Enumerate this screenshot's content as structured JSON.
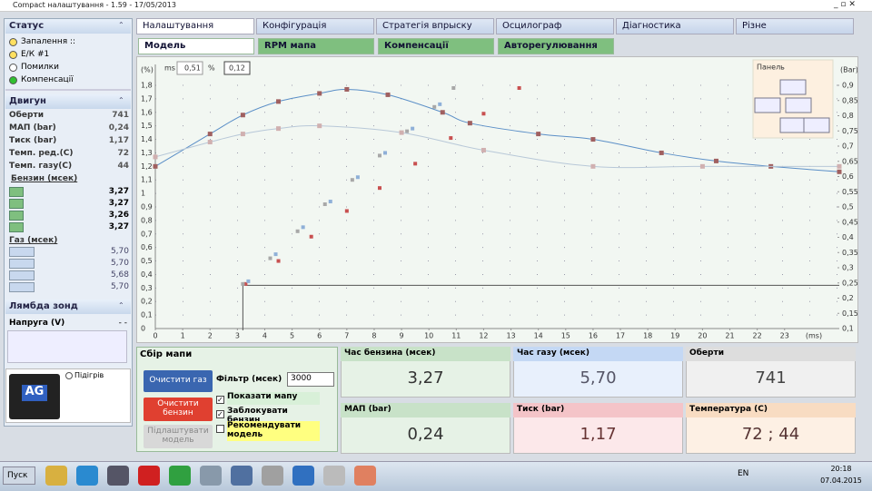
{
  "window": {
    "title": "Compact налаштування - 1.59 - 17/05/2013"
  },
  "tabs": [
    "Налаштування",
    "Конфігурація",
    "Стратегія впрыску",
    "Осцилограф",
    "Діагностика",
    "Різне"
  ],
  "subtabs": [
    "Модель",
    "RPM мапа",
    "Компенсації",
    "Авторегулювання"
  ],
  "status": {
    "title": "Статус",
    "items": [
      "Запалення ::",
      "Е/К #1",
      "Помилки",
      "Компенсації"
    ]
  },
  "engine": {
    "title": "Двигун",
    "rows": [
      [
        "Оберти",
        "741"
      ],
      [
        "МАП (bar)",
        "0,24"
      ],
      [
        "Тиск (bar)",
        "1,17"
      ],
      [
        "Темп. ред.(С)",
        "72"
      ],
      [
        "Темп. газу(С)",
        "44"
      ]
    ],
    "benzin_title": "Бензин (мсек)",
    "benzin": [
      "3,27",
      "3,27",
      "3,26",
      "3,27"
    ],
    "gas_title": "Газ (мсек)",
    "gas": [
      "5,70",
      "5,70",
      "5,68",
      "5,70"
    ]
  },
  "lambda": {
    "title": "Лямбда зонд",
    "label": "Напруга (V)",
    "value": "- -"
  },
  "logo": {
    "text": "AG",
    "checkbox": "Підігрів"
  },
  "chart": {
    "y_unit": "(%)",
    "y2_unit": "(Bar)",
    "x_unit": "(ms)",
    "ms_label": "ms",
    "ms_value": "0,51",
    "pct_label": "%",
    "pct_value": "0,12",
    "panel_title": "Панель",
    "xlim": [
      0,
      25
    ],
    "ylim": [
      0,
      1.8
    ],
    "y2lim": [
      0.1,
      0.9
    ],
    "xticks": [
      0,
      1,
      2,
      3,
      4,
      5,
      6,
      7,
      8,
      9,
      10,
      11,
      12,
      13,
      14,
      15,
      16,
      17,
      18,
      19,
      20,
      21,
      22,
      23
    ],
    "yticks": [
      0,
      {
        "value": 0.1,
        "label": "0,1"
      },
      {
        "value": 0.2,
        "label": "0,2"
      },
      {
        "value": 0.3,
        "label": "0,3"
      },
      {
        "value": 0.4,
        "label": "0,4"
      },
      {
        "value": 0.5,
        "label": "0,5"
      },
      {
        "value": 0.6,
        "label": "0,6"
      },
      {
        "value": 0.7,
        "label": "0,7"
      },
      {
        "value": 0.8,
        "label": "0,8"
      },
      {
        "value": 0.9,
        "label": "0,9"
      },
      1,
      {
        "value": 1.1,
        "label": "1,1"
      },
      {
        "value": 1.2,
        "label": "1,2"
      },
      {
        "value": 1.3,
        "label": "1,3"
      },
      {
        "value": 1.4,
        "label": "1,4"
      },
      {
        "value": 1.5,
        "label": "1,5"
      },
      {
        "value": 1.6,
        "label": "1,6"
      },
      {
        "value": 1.7,
        "label": "1,7"
      },
      {
        "value": 1.8,
        "label": "1,8"
      }
    ],
    "y2ticks": [
      {
        "value": 0.1,
        "label": "0,1"
      },
      {
        "value": 0.15,
        "label": "0,15"
      },
      {
        "value": 0.2,
        "label": "0,2"
      },
      {
        "value": 0.25,
        "label": "0,25"
      },
      {
        "value": 0.3,
        "label": "0,3"
      },
      {
        "value": 0.35,
        "label": "0,35"
      },
      {
        "value": 0.4,
        "label": "0,4"
      },
      {
        "value": 0.45,
        "label": "0,45"
      },
      {
        "value": 0.5,
        "label": "0,5"
      },
      {
        "value": 0.55,
        "label": "0,55"
      },
      {
        "value": 0.6,
        "label": "0,6"
      },
      {
        "value": 0.65,
        "label": "0,65"
      },
      {
        "value": 0.7,
        "label": "0,7"
      },
      {
        "value": 0.75,
        "label": "0,75"
      },
      {
        "value": 0.8,
        "label": "0,8"
      },
      {
        "value": 0.85,
        "label": "0,85"
      },
      {
        "value": 0.9,
        "label": "0,9"
      }
    ],
    "cursor": {
      "x": 3.2,
      "y": 0.32
    },
    "curves": [
      {
        "color": "#5b8fc7",
        "marker": "#a06060",
        "x": [
          0,
          2,
          3.2,
          4.5,
          6,
          7,
          8.5,
          10.5,
          11.5,
          14,
          16,
          18.5,
          20.5,
          22.5,
          25
        ],
        "values": [
          1.2,
          1.44,
          1.58,
          1.68,
          1.74,
          1.77,
          1.73,
          1.6,
          1.52,
          1.44,
          1.4,
          1.3,
          1.24,
          1.2,
          1.16
        ]
      },
      {
        "color": "#b8c8d8",
        "marker": "#d0b0b0",
        "x": [
          0,
          2,
          3.2,
          4.5,
          6,
          9,
          12,
          16,
          20,
          25
        ],
        "values": [
          1.27,
          1.38,
          1.44,
          1.48,
          1.5,
          1.45,
          1.32,
          1.2,
          1.2,
          1.2
        ]
      }
    ],
    "scatter": [
      {
        "color": "#c85050",
        "x": [
          3.3,
          4.5,
          5.7,
          7,
          8.2,
          9.5,
          10.8,
          12,
          13.3
        ],
        "values": [
          0.33,
          0.5,
          0.68,
          0.87,
          1.04,
          1.22,
          1.41,
          1.59,
          1.78
        ]
      },
      {
        "color": "#a8a8a8",
        "x": [
          3.2,
          4.2,
          5.2,
          6.2,
          7.2,
          8.2,
          9.2,
          10.2,
          10.9
        ],
        "values": [
          0.33,
          0.52,
          0.72,
          0.92,
          1.1,
          1.28,
          1.46,
          1.64,
          1.78
        ]
      },
      {
        "color": "#8fb0d8",
        "x": [
          3.4,
          4.4,
          5.4,
          6.4,
          7.4,
          8.4,
          9.4,
          10.4
        ],
        "values": [
          0.35,
          0.55,
          0.75,
          0.94,
          1.12,
          1.3,
          1.48,
          1.66
        ]
      }
    ]
  },
  "map": {
    "title": "Сбір мапи",
    "clear_gas": "Очистити газ",
    "clear_benzin": "Очистити бензин",
    "adjust": "Підлаштувати модель",
    "filter_label": "Фільтр (мсек)",
    "filter_value": "3000",
    "checks": [
      "Показати мапу",
      "Заблокувати бензин",
      "Рекомендувати модель"
    ]
  },
  "tiles": [
    {
      "title": "Час бензина (мсек)",
      "value": "3,27"
    },
    {
      "title": "Час газу (мсек)",
      "value": "5,70"
    },
    {
      "title": "Оберти",
      "value": "741"
    },
    {
      "title": "МАП (bar)",
      "value": "0,24"
    },
    {
      "title": "Тиск (bar)",
      "value": "1,17"
    },
    {
      "title": "Температура (С)",
      "value": "72 ; 44"
    }
  ],
  "taskbar": {
    "start": "Пуск",
    "lang": "EN",
    "time": "20:18",
    "date": "07.04.2015"
  }
}
